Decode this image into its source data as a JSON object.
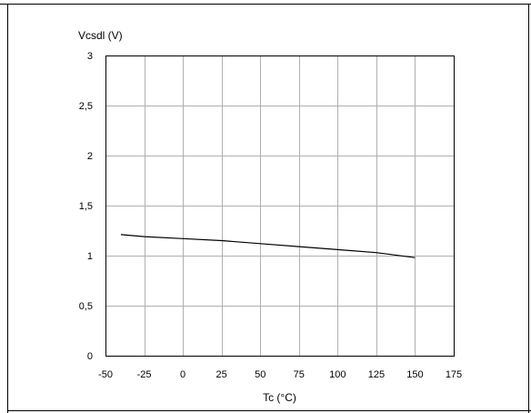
{
  "chart_data": {
    "type": "line",
    "ylabel": "Vcsdl (V)",
    "xlabel": "Tc (°C)",
    "xlim": [
      -50,
      175
    ],
    "ylim": [
      0,
      3
    ],
    "x_ticks": [
      -50,
      -25,
      0,
      25,
      50,
      75,
      100,
      125,
      150,
      175
    ],
    "y_ticks": [
      0,
      0.5,
      1,
      1.5,
      2,
      2.5,
      3
    ],
    "x_tick_labels": [
      "-50",
      "-25",
      "0",
      "25",
      "50",
      "75",
      "100",
      "125",
      "150",
      "175"
    ],
    "y_tick_labels": [
      "0",
      "0,5",
      "1",
      "1,5",
      "2",
      "2,5",
      "3"
    ],
    "grid": true,
    "series": [
      {
        "x": [
          -40,
          -25,
          0,
          25,
          50,
          75,
          100,
          125,
          150
        ],
        "values": [
          1.21,
          1.19,
          1.17,
          1.15,
          1.12,
          1.09,
          1.06,
          1.03,
          0.98
        ]
      }
    ]
  }
}
